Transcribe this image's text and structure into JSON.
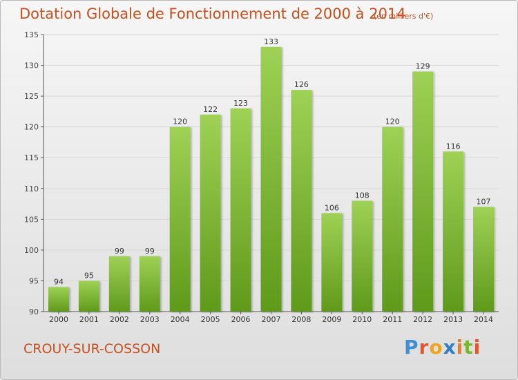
{
  "header": {
    "title": "Dotation Globale de Fonctionnement de 2000 à 2014",
    "unit_note": "(en milliers d'€)"
  },
  "footer": {
    "commune": "CROUY-SUR-COSSON",
    "brand": [
      "P",
      "r",
      "o",
      "x",
      "i",
      "t",
      "i"
    ]
  },
  "colors": {
    "title": "#c8501e",
    "bar_light": "#9ed155",
    "bar_dark": "#5f9a1b",
    "grid": "#d8d8d8",
    "axis": "#555555"
  },
  "chart_data": {
    "type": "bar",
    "title": "Dotation Globale de Fonctionnement de 2000 à 2014",
    "xlabel": "",
    "ylabel": "",
    "categories": [
      "2000",
      "2001",
      "2002",
      "2003",
      "2004",
      "2005",
      "2006",
      "2007",
      "2008",
      "2009",
      "2010",
      "2011",
      "2012",
      "2013",
      "2014"
    ],
    "values": [
      94,
      95,
      99,
      99,
      120,
      122,
      123,
      133,
      126,
      106,
      108,
      120,
      129,
      116,
      107
    ],
    "ylim": [
      90,
      135
    ],
    "yticks": [
      90,
      95,
      100,
      105,
      110,
      115,
      120,
      125,
      130,
      135
    ],
    "grid": true,
    "legend": "none"
  }
}
